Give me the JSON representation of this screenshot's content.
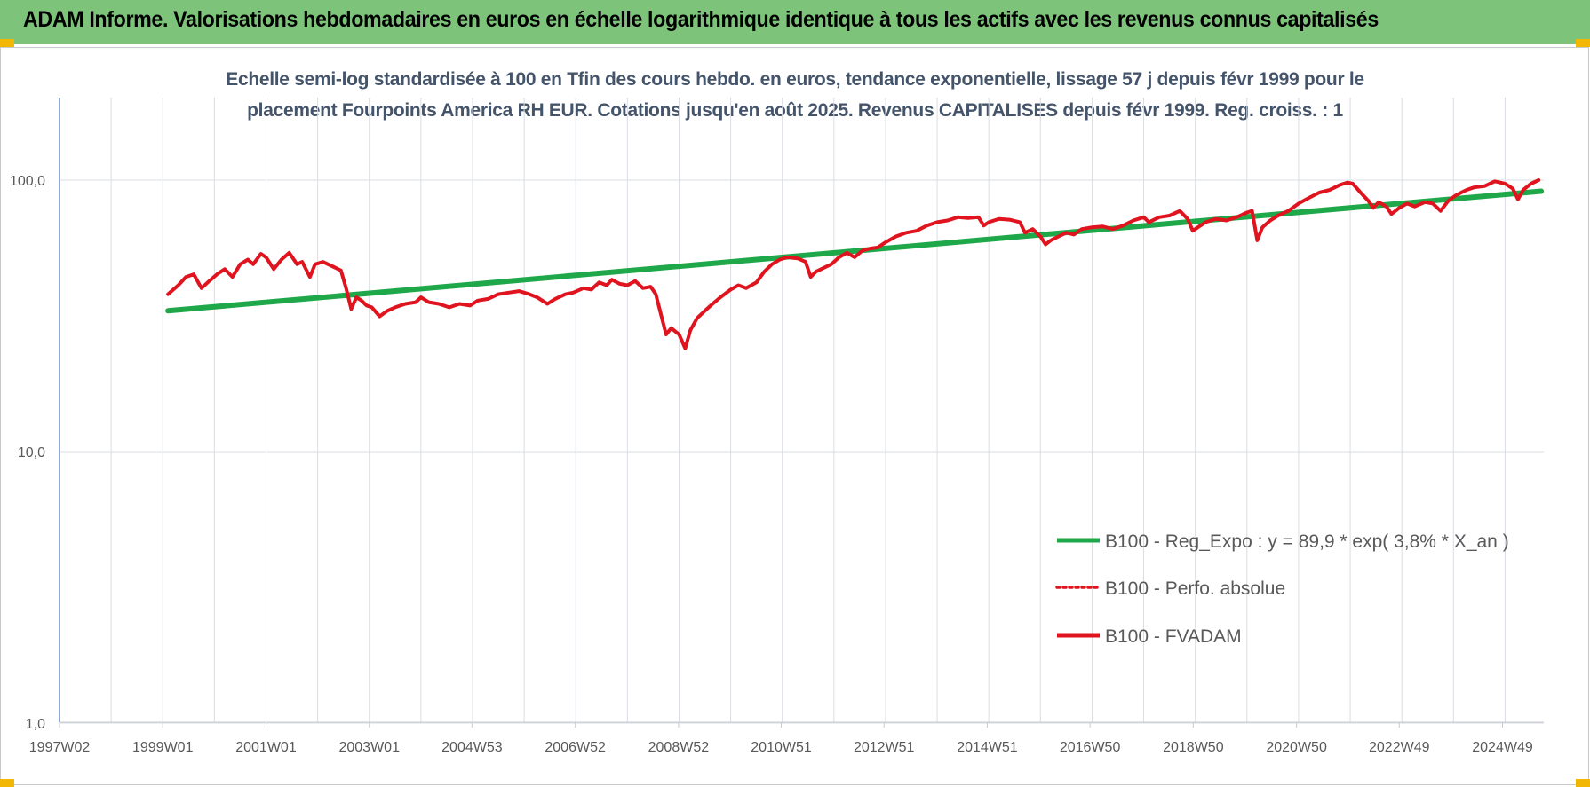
{
  "banner": {
    "title": "ADAM Informe. Valorisations hebdomadaires en euros en échelle logarithmique identique à tous les actifs avec les revenus connus capitalisés",
    "color": "#7dc47a",
    "corner_color": "#f2b705"
  },
  "chart_data": {
    "type": "line",
    "title_lines": [
      "Echelle semi-log standardisée à 100 en Tfin des cours hebdo. en euros, tendance exponentielle, lissage 57 j depuis févr 1999 pour le",
      "placement Fourpoints America RH EUR. Cotations jusqu'en août 2025.  Revenus CAPITALISES depuis févr 1999. Reg. croiss. : 1"
    ],
    "y_scale": "log",
    "ylim": [
      1,
      200
    ],
    "y_ticks": [
      {
        "value": 1,
        "label": "1,0"
      },
      {
        "value": 10,
        "label": "10,0"
      },
      {
        "value": 100,
        "label": "100,0"
      }
    ],
    "x_unit": "year",
    "xlim": [
      1997.0,
      2025.75
    ],
    "x_ticks": [
      {
        "value": 1997.0,
        "label": "1997W02"
      },
      {
        "value": 1999.0,
        "label": "1999W01"
      },
      {
        "value": 2001.0,
        "label": "2001W01"
      },
      {
        "value": 2003.0,
        "label": "2003W01"
      },
      {
        "value": 2004.99,
        "label": "2004W53"
      },
      {
        "value": 2006.99,
        "label": "2006W52"
      },
      {
        "value": 2008.99,
        "label": "2008W52"
      },
      {
        "value": 2010.98,
        "label": "2010W51"
      },
      {
        "value": 2012.97,
        "label": "2012W51"
      },
      {
        "value": 2014.97,
        "label": "2014W51"
      },
      {
        "value": 2016.96,
        "label": "2016W50"
      },
      {
        "value": 2018.96,
        "label": "2018W50"
      },
      {
        "value": 2020.96,
        "label": "2020W50"
      },
      {
        "value": 2022.95,
        "label": "2022W49"
      },
      {
        "value": 2024.95,
        "label": "2024W49"
      }
    ],
    "grid": "vertical-minor-and-horizontal",
    "legend_position": "bottom-right",
    "series": [
      {
        "name": "B100 - Reg_Expo : y = 89,9 * exp( 3,8% *  X_an )",
        "style": "solid",
        "color": "#1fa84a",
        "points": [
          [
            1999.1,
            33.0
          ],
          [
            2025.7,
            91.0
          ]
        ]
      },
      {
        "name": "B100 - Perfo. absolue",
        "style": "dotted",
        "color": "#e0141e",
        "points": []
      },
      {
        "name": "B100 - FVADAM",
        "style": "solid",
        "color": "#e0141e",
        "points": [
          [
            1999.1,
            38.0
          ],
          [
            1999.3,
            41.0
          ],
          [
            1999.45,
            44.0
          ],
          [
            1999.6,
            45.0
          ],
          [
            1999.75,
            40.0
          ],
          [
            1999.9,
            42.5
          ],
          [
            2000.05,
            45.0
          ],
          [
            2000.2,
            47.0
          ],
          [
            2000.35,
            44.0
          ],
          [
            2000.5,
            49.0
          ],
          [
            2000.65,
            51.0
          ],
          [
            2000.75,
            49.0
          ],
          [
            2000.9,
            53.5
          ],
          [
            2001.0,
            52.0
          ],
          [
            2001.15,
            47.0
          ],
          [
            2001.3,
            51.0
          ],
          [
            2001.45,
            54.0
          ],
          [
            2001.6,
            49.0
          ],
          [
            2001.7,
            50.0
          ],
          [
            2001.85,
            44.0
          ],
          [
            2001.95,
            49.0
          ],
          [
            2002.1,
            50.0
          ],
          [
            2002.3,
            48.0
          ],
          [
            2002.45,
            46.5
          ],
          [
            2002.55,
            40.0
          ],
          [
            2002.65,
            33.5
          ],
          [
            2002.75,
            37.0
          ],
          [
            2002.85,
            36.0
          ],
          [
            2002.95,
            34.5
          ],
          [
            2003.05,
            34.0
          ],
          [
            2003.2,
            31.5
          ],
          [
            2003.35,
            33.0
          ],
          [
            2003.5,
            34.0
          ],
          [
            2003.7,
            35.0
          ],
          [
            2003.9,
            35.5
          ],
          [
            2004.0,
            37.0
          ],
          [
            2004.15,
            35.5
          ],
          [
            2004.35,
            35.0
          ],
          [
            2004.55,
            34.0
          ],
          [
            2004.75,
            35.0
          ],
          [
            2004.95,
            34.5
          ],
          [
            2005.1,
            36.0
          ],
          [
            2005.3,
            36.5
          ],
          [
            2005.5,
            38.0
          ],
          [
            2005.7,
            38.5
          ],
          [
            2005.9,
            39.0
          ],
          [
            2006.1,
            38.0
          ],
          [
            2006.25,
            37.0
          ],
          [
            2006.45,
            35.0
          ],
          [
            2006.6,
            36.5
          ],
          [
            2006.8,
            38.0
          ],
          [
            2006.95,
            38.5
          ],
          [
            2007.15,
            40.0
          ],
          [
            2007.3,
            39.5
          ],
          [
            2007.45,
            42.0
          ],
          [
            2007.6,
            41.0
          ],
          [
            2007.7,
            43.0
          ],
          [
            2007.85,
            41.5
          ],
          [
            2008.0,
            41.0
          ],
          [
            2008.15,
            42.5
          ],
          [
            2008.3,
            40.0
          ],
          [
            2008.45,
            40.5
          ],
          [
            2008.55,
            38.0
          ],
          [
            2008.65,
            32.0
          ],
          [
            2008.75,
            27.0
          ],
          [
            2008.85,
            28.5
          ],
          [
            2009.0,
            27.0
          ],
          [
            2009.12,
            24.0
          ],
          [
            2009.22,
            28.0
          ],
          [
            2009.35,
            31.0
          ],
          [
            2009.5,
            33.0
          ],
          [
            2009.65,
            35.0
          ],
          [
            2009.8,
            37.0
          ],
          [
            2010.0,
            39.5
          ],
          [
            2010.15,
            41.0
          ],
          [
            2010.3,
            40.0
          ],
          [
            2010.5,
            42.0
          ],
          [
            2010.65,
            46.0
          ],
          [
            2010.8,
            49.0
          ],
          [
            2010.95,
            51.0
          ],
          [
            2011.1,
            52.0
          ],
          [
            2011.3,
            51.5
          ],
          [
            2011.45,
            50.0
          ],
          [
            2011.55,
            44.0
          ],
          [
            2011.65,
            46.0
          ],
          [
            2011.8,
            47.5
          ],
          [
            2011.95,
            49.0
          ],
          [
            2012.1,
            52.0
          ],
          [
            2012.25,
            54.0
          ],
          [
            2012.4,
            52.0
          ],
          [
            2012.55,
            55.0
          ],
          [
            2012.7,
            56.0
          ],
          [
            2012.85,
            56.5
          ],
          [
            2013.0,
            59.0
          ],
          [
            2013.2,
            62.0
          ],
          [
            2013.4,
            64.0
          ],
          [
            2013.6,
            65.0
          ],
          [
            2013.8,
            68.0
          ],
          [
            2014.0,
            70.0
          ],
          [
            2014.2,
            71.0
          ],
          [
            2014.4,
            73.0
          ],
          [
            2014.6,
            72.5
          ],
          [
            2014.8,
            73.0
          ],
          [
            2014.9,
            68.0
          ],
          [
            2015.0,
            70.0
          ],
          [
            2015.2,
            72.0
          ],
          [
            2015.4,
            71.5
          ],
          [
            2015.6,
            70.0
          ],
          [
            2015.7,
            64.0
          ],
          [
            2015.85,
            66.0
          ],
          [
            2016.0,
            62.0
          ],
          [
            2016.1,
            58.0
          ],
          [
            2016.2,
            60.0
          ],
          [
            2016.35,
            62.0
          ],
          [
            2016.5,
            64.0
          ],
          [
            2016.65,
            63.0
          ],
          [
            2016.8,
            66.0
          ],
          [
            2017.0,
            67.0
          ],
          [
            2017.2,
            67.5
          ],
          [
            2017.4,
            66.0
          ],
          [
            2017.6,
            68.0
          ],
          [
            2017.8,
            71.0
          ],
          [
            2018.0,
            73.0
          ],
          [
            2018.1,
            70.0
          ],
          [
            2018.3,
            73.0
          ],
          [
            2018.5,
            74.0
          ],
          [
            2018.7,
            77.0
          ],
          [
            2018.85,
            72.0
          ],
          [
            2018.95,
            65.0
          ],
          [
            2019.05,
            67.0
          ],
          [
            2019.2,
            70.0
          ],
          [
            2019.4,
            72.0
          ],
          [
            2019.6,
            71.0
          ],
          [
            2019.8,
            73.0
          ],
          [
            2020.0,
            76.0
          ],
          [
            2020.1,
            77.0
          ],
          [
            2020.2,
            60.0
          ],
          [
            2020.3,
            67.0
          ],
          [
            2020.45,
            71.0
          ],
          [
            2020.6,
            74.0
          ],
          [
            2020.8,
            77.0
          ],
          [
            2021.0,
            82.0
          ],
          [
            2021.2,
            86.0
          ],
          [
            2021.4,
            90.0
          ],
          [
            2021.6,
            92.0
          ],
          [
            2021.8,
            96.0
          ],
          [
            2021.95,
            98.0
          ],
          [
            2022.05,
            97.0
          ],
          [
            2022.2,
            90.0
          ],
          [
            2022.35,
            84.0
          ],
          [
            2022.45,
            79.0
          ],
          [
            2022.55,
            83.0
          ],
          [
            2022.7,
            80.0
          ],
          [
            2022.8,
            75.0
          ],
          [
            2022.95,
            79.0
          ],
          [
            2023.1,
            82.0
          ],
          [
            2023.25,
            80.0
          ],
          [
            2023.45,
            83.0
          ],
          [
            2023.6,
            82.0
          ],
          [
            2023.75,
            77.0
          ],
          [
            2023.9,
            84.0
          ],
          [
            2024.05,
            88.0
          ],
          [
            2024.25,
            92.0
          ],
          [
            2024.4,
            94.0
          ],
          [
            2024.6,
            95.0
          ],
          [
            2024.8,
            99.0
          ],
          [
            2025.0,
            97.0
          ],
          [
            2025.15,
            93.0
          ],
          [
            2025.25,
            85.0
          ],
          [
            2025.35,
            92.0
          ],
          [
            2025.5,
            97.0
          ],
          [
            2025.65,
            100.0
          ]
        ]
      }
    ]
  }
}
